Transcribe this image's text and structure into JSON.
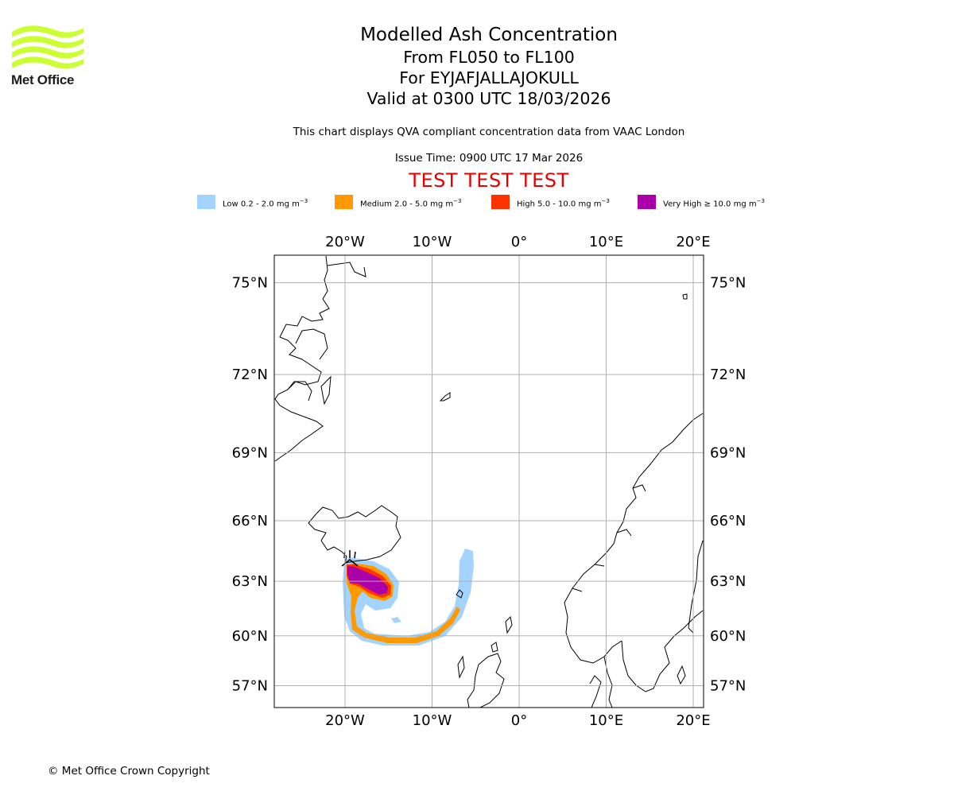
{
  "logo": {
    "text": "Met Office",
    "icon": "met-office-wave-logo",
    "color": "#ccff33"
  },
  "title": {
    "line1": "Modelled Ash Concentration",
    "line2": "From FL050 to FL100",
    "line3": "For EYJAFJALLAJOKULL",
    "line4": "Valid at 0300 UTC 18/03/2026"
  },
  "subtitle": "This chart displays QVA compliant concentration data from VAAC London",
  "issue_time": "Issue Time: 0900 UTC 17 Mar 2026",
  "test_banner": "TEST TEST TEST",
  "legend": [
    {
      "label": "Low 0.2 - 2.0 mg m",
      "color": "#a3d4ff"
    },
    {
      "label": "Medium 2.0 - 5.0 mg m",
      "color": "#ff9900"
    },
    {
      "label": "High 5.0 - 10.0 mg m",
      "color": "#ff3300"
    },
    {
      "label": "Very High ≥ 10.0 mg m",
      "color": "#aa00aa"
    }
  ],
  "legend_unit_exponent": "−3",
  "map": {
    "lon_labels": [
      "20°W",
      "10°W",
      "0°",
      "10°E",
      "20°E"
    ],
    "lat_labels": [
      "75°N",
      "72°N",
      "69°N",
      "66°N",
      "63°N",
      "60°N",
      "57°N"
    ],
    "lon_values": [
      -20,
      -10,
      0,
      10,
      20
    ],
    "lat_values": [
      75,
      72,
      69,
      66,
      63,
      60,
      57
    ],
    "extent": {
      "lon_min": -28.2,
      "lon_max": 21,
      "lat_min": 55.6,
      "lat_max": 75.8
    },
    "volcano": {
      "name": "EYJAFJALLAJOKULL",
      "lon": -19.6,
      "lat": 63.6
    }
  },
  "copyright": "© Met Office Crown Copyright"
}
